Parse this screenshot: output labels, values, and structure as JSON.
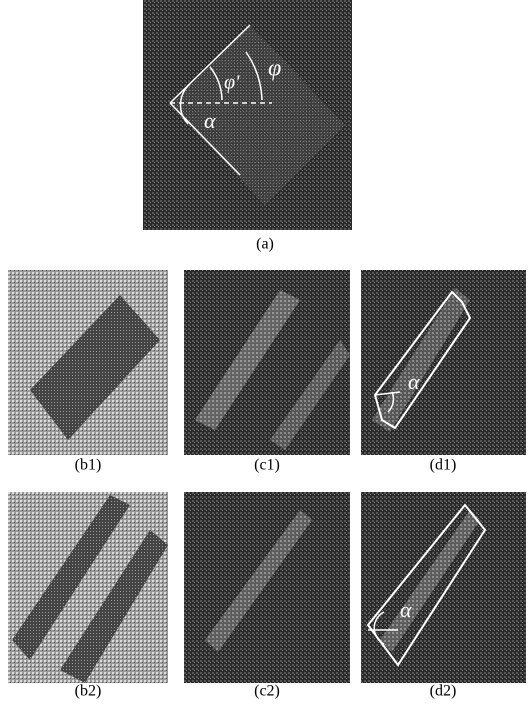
{
  "panels": [
    {
      "label": "(a)",
      "annotations": [
        "φ'",
        "φ",
        "α"
      ]
    },
    {
      "label": "(b1)"
    },
    {
      "label": "(c1)"
    },
    {
      "label": "(d1)",
      "annotations": [
        "α"
      ]
    },
    {
      "label": "(b2)"
    },
    {
      "label": "(c2)"
    },
    {
      "label": "(d2)",
      "annotations": [
        "α"
      ]
    }
  ]
}
